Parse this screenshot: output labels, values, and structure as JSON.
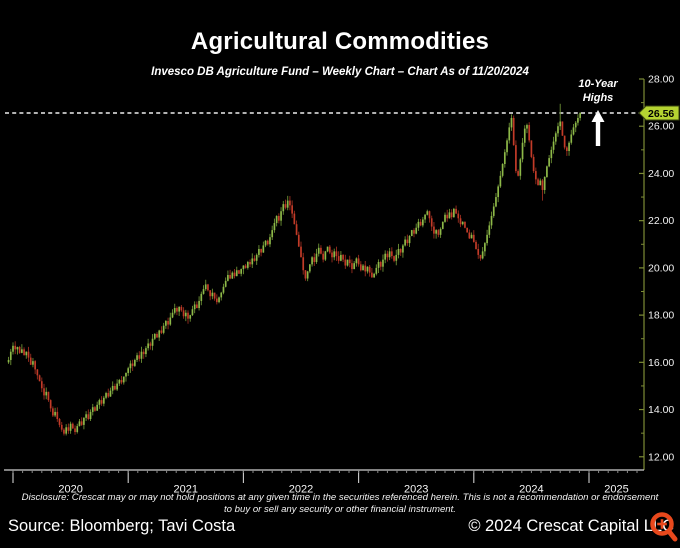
{
  "header": {
    "title": "Agricultural Commodities",
    "subtitle": "Invesco DB Agriculture Fund – Weekly Chart – Chart As of 11/20/2024"
  },
  "annotation": {
    "line1": "10-Year",
    "line2": "Highs",
    "arrow_icon": "up-arrow"
  },
  "footer": {
    "disclosure_line1": "Disclosure: Crescat may or may not hold positions at any given time in the securities referenced herein. This is not a recommendation or endorsement",
    "disclosure_line2": "to buy or sell any security or other financial instrument.",
    "source": "Source: Bloomberg; Tavi Costa",
    "copyright": "© 2024 Crescat Capital LLC",
    "logo_color": "#e8481c"
  },
  "chart_data": {
    "type": "candlestick",
    "title": "Agricultural Commodities",
    "instrument": "Invesco DB Agriculture Fund",
    "frequency": "Weekly",
    "as_of": "11/20/2024",
    "x_years": [
      "2020",
      "2021",
      "2022",
      "2023",
      "2024",
      "2025"
    ],
    "weeks_per_year": 52,
    "y_ticks": [
      28,
      26,
      24,
      22,
      20,
      18,
      16,
      14,
      12
    ],
    "y_minor_ticks": [
      27,
      25,
      23,
      21,
      19,
      17,
      15,
      13
    ],
    "ylim": [
      11.44,
      28.0
    ],
    "tick_decimals": 2,
    "dashed_level": 26.56,
    "last_price_label": "26.56",
    "last_price_badge_color": "#b5d331",
    "up_color": "#8db848",
    "up_wick_color": "#6d9135",
    "down_color": "#c23b28",
    "down_wick_color": "#9a2d1f",
    "axis_color_right": "#7d8c36",
    "axis_color_bottom": "#cfcfcf",
    "dashed_line_color": "#ededed",
    "start_open": 16.0,
    "weekly_closes": [
      16.1,
      16.45,
      16.7,
      16.55,
      16.65,
      16.4,
      16.55,
      16.3,
      16.45,
      16.2,
      15.9,
      16.05,
      15.7,
      15.45,
      15.2,
      14.9,
      14.6,
      14.75,
      14.4,
      14.05,
      13.75,
      13.9,
      13.6,
      13.35,
      13.15,
      12.98,
      13.25,
      13.1,
      13.4,
      13.2,
      13.05,
      13.3,
      13.5,
      13.35,
      13.65,
      13.8,
      13.6,
      13.9,
      14.1,
      13.95,
      14.2,
      14.4,
      14.25,
      14.5,
      14.7,
      14.55,
      14.8,
      15.0,
      14.85,
      15.1,
      15.25,
      15.15,
      15.4,
      15.55,
      15.75,
      15.95,
      15.85,
      16.1,
      16.3,
      16.15,
      16.45,
      16.35,
      16.6,
      16.8,
      16.7,
      17.0,
      17.2,
      17.05,
      17.35,
      17.25,
      17.55,
      17.75,
      17.6,
      17.9,
      18.1,
      18.3,
      18.15,
      18.35,
      18.2,
      17.95,
      18.1,
      17.85,
      18.0,
      18.25,
      18.45,
      18.3,
      18.6,
      18.9,
      19.1,
      19.3,
      19.05,
      18.8,
      18.95,
      18.7,
      18.55,
      18.75,
      18.95,
      19.2,
      19.45,
      19.7,
      19.55,
      19.8,
      19.65,
      19.9,
      19.75,
      19.95,
      20.1,
      20.0,
      20.25,
      20.15,
      20.4,
      20.3,
      20.55,
      20.8,
      20.65,
      20.95,
      21.15,
      21.0,
      21.3,
      21.6,
      21.9,
      22.2,
      22.0,
      22.4,
      22.7,
      22.55,
      22.85,
      22.65,
      22.3,
      21.85,
      21.4,
      20.9,
      20.45,
      19.9,
      19.55,
      19.85,
      20.15,
      20.45,
      20.25,
      20.6,
      20.85,
      20.6,
      20.35,
      20.7,
      20.9,
      20.65,
      20.45,
      20.7,
      20.5,
      20.3,
      20.55,
      20.35,
      20.1,
      20.35,
      20.2,
      19.95,
      20.2,
      20.4,
      20.15,
      19.9,
      20.1,
      19.85,
      20.05,
      19.8,
      19.6,
      19.75,
      20.0,
      20.25,
      20.05,
      20.35,
      20.6,
      20.45,
      20.7,
      20.5,
      20.3,
      20.55,
      20.8,
      20.65,
      20.95,
      21.2,
      21.05,
      21.35,
      21.6,
      21.45,
      21.7,
      21.95,
      21.8,
      22.05,
      22.25,
      22.4,
      22.1,
      21.75,
      21.45,
      21.6,
      21.4,
      21.65,
      21.95,
      22.25,
      22.1,
      22.35,
      22.15,
      22.5,
      22.3,
      22.1,
      21.85,
      21.95,
      21.7,
      21.5,
      21.25,
      21.4,
      21.1,
      20.8,
      20.55,
      20.4,
      20.7,
      21.05,
      21.4,
      21.8,
      22.2,
      22.6,
      23.0,
      23.45,
      23.9,
      24.4,
      24.9,
      25.4,
      25.95,
      26.35,
      25.2,
      24.1,
      23.9,
      24.6,
      25.3,
      25.9,
      26.05,
      25.4,
      24.7,
      24.1,
      23.75,
      23.5,
      23.7,
      23.3,
      23.85,
      24.3,
      24.65,
      25.0,
      25.35,
      25.7,
      26.0,
      26.2,
      25.6,
      25.1,
      24.95,
      25.3,
      25.65,
      25.95,
      26.15,
      26.35,
      26.56
    ],
    "wick_overrides": {
      "25": {
        "low": 12.9
      },
      "213": {
        "low": 20.3
      },
      "227": {
        "high": 26.5
      },
      "241": {
        "low": 22.85
      },
      "249": {
        "high": 26.95
      },
      "258": {
        "high": 26.6
      }
    },
    "grid": false,
    "legend": "none",
    "y_axis_position": "right"
  }
}
